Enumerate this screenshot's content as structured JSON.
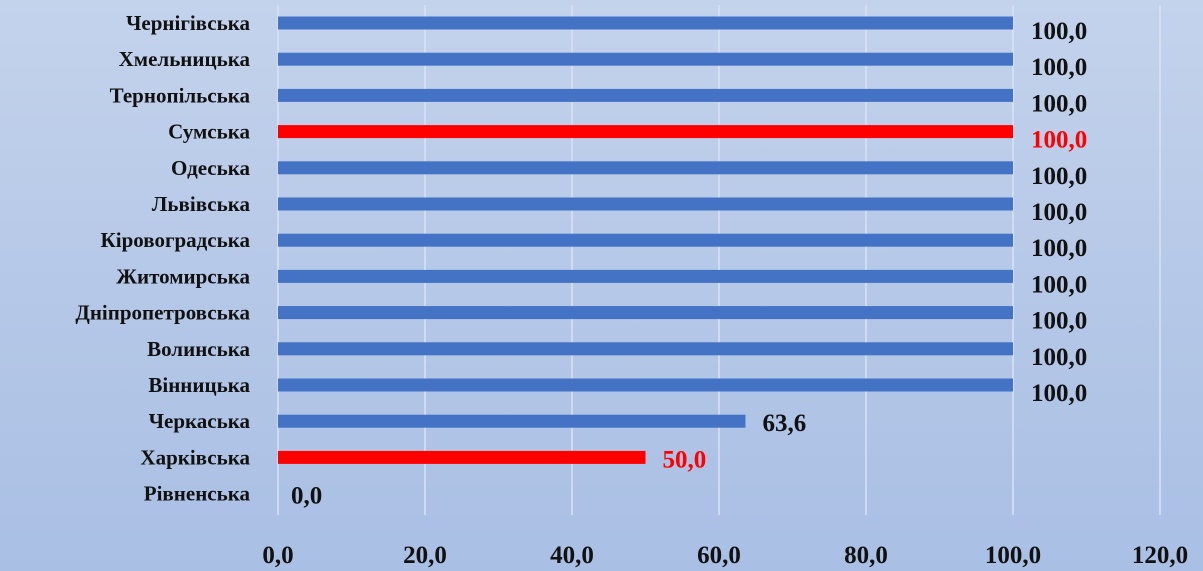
{
  "chart_data": {
    "type": "bar",
    "orientation": "horizontal",
    "categories": [
      "Чернігівська",
      "Хмельницька",
      "Тернопільська",
      "Сумська",
      "Одеська",
      "Львівська",
      "Кіровоградська",
      "Житомирська",
      "Дніпропетровська",
      "Волинська",
      "Вінницька",
      "Черкаська",
      "Харківська",
      "Рівненська"
    ],
    "values": [
      100.0,
      100.0,
      100.0,
      100.0,
      100.0,
      100.0,
      100.0,
      100.0,
      100.0,
      100.0,
      100.0,
      63.6,
      50.0,
      0.0
    ],
    "value_labels": [
      "100,0",
      "100,0",
      "100,0",
      "100,0",
      "100,0",
      "100,0",
      "100,0",
      "100,0",
      "100,0",
      "100,0",
      "100,0",
      "63,6",
      "50,0",
      "0,0"
    ],
    "highlighted": [
      false,
      false,
      false,
      true,
      false,
      false,
      false,
      false,
      false,
      false,
      false,
      false,
      true,
      false
    ],
    "xlim": [
      0,
      120
    ],
    "x_ticks": [
      0,
      20,
      40,
      60,
      80,
      100,
      120
    ],
    "x_tick_labels": [
      "0,0",
      "20,0",
      "40,0",
      "60,0",
      "80,0",
      "100,0",
      "120,0"
    ],
    "grid": true,
    "title": "",
    "xlabel": "",
    "ylabel": "",
    "colors": {
      "bar": "#4472c4",
      "highlight": "#ff0000",
      "grid": "#d9e2f3",
      "text": "#111111"
    }
  }
}
